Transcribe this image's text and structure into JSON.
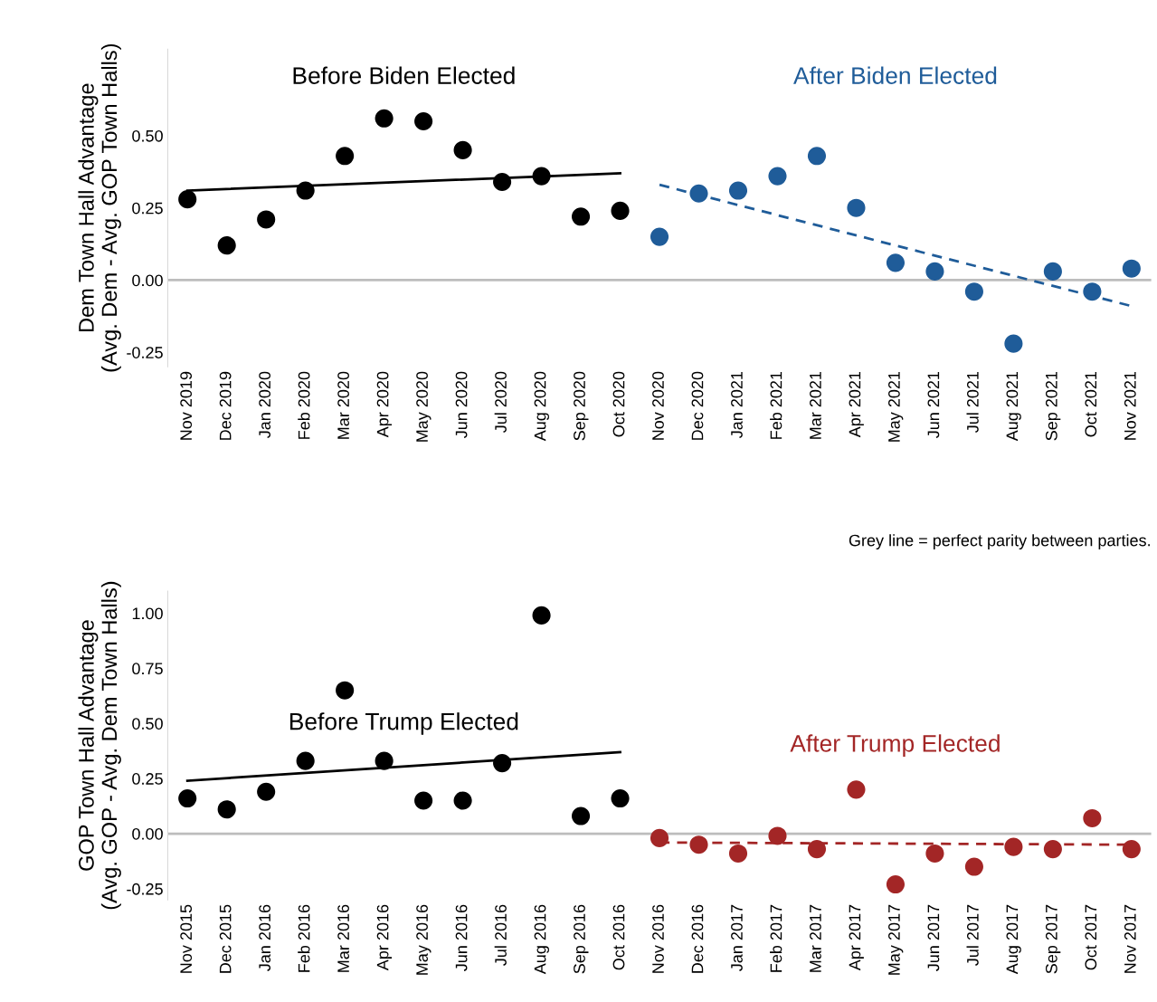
{
  "chart_data": [
    {
      "type": "scatter",
      "ylabel": "Dem Town Hall Advantage\n(Avg. Dem - Avg. GOP Town Halls)",
      "categories": [
        "Nov 2019",
        "Dec 2019",
        "Jan 2020",
        "Feb 2020",
        "Mar 2020",
        "Apr 2020",
        "May 2020",
        "Jun 2020",
        "Jul 2020",
        "Aug 2020",
        "Sep 2020",
        "Oct 2020",
        "Nov 2020",
        "Dec 2020",
        "Jan 2021",
        "Feb 2021",
        "Mar 2021",
        "Apr 2021",
        "May 2021",
        "Jun 2021",
        "Jul 2021",
        "Aug 2021",
        "Sep 2021",
        "Oct 2021",
        "Nov 2021"
      ],
      "series": [
        {
          "name": "Before Biden Elected",
          "color": "#000000",
          "marker": "circle",
          "values": [
            0.28,
            0.12,
            0.21,
            0.31,
            0.43,
            0.56,
            0.55,
            0.45,
            0.34,
            0.36,
            0.22,
            0.24,
            null,
            null,
            null,
            null,
            null,
            null,
            null,
            null,
            null,
            null,
            null,
            null,
            null
          ]
        },
        {
          "color": "#000000",
          "type": "line",
          "line_style": "solid",
          "values": [
            0.31,
            null,
            null,
            null,
            null,
            null,
            null,
            null,
            null,
            null,
            null,
            0.37,
            null,
            null,
            null,
            null,
            null,
            null,
            null,
            null,
            null,
            null,
            null,
            null,
            null
          ]
        },
        {
          "name": "After Biden Elected",
          "color": "#1f5c99",
          "marker": "circle",
          "values": [
            null,
            null,
            null,
            null,
            null,
            null,
            null,
            null,
            null,
            null,
            null,
            null,
            0.15,
            0.3,
            0.31,
            0.36,
            0.43,
            0.25,
            0.06,
            0.03,
            -0.04,
            -0.22,
            0.03,
            -0.04,
            0.04
          ]
        },
        {
          "color": "#1f5c99",
          "type": "line",
          "line_style": "dashed",
          "values": [
            null,
            null,
            null,
            null,
            null,
            null,
            null,
            null,
            null,
            null,
            null,
            null,
            0.33,
            null,
            null,
            null,
            null,
            null,
            null,
            null,
            null,
            null,
            null,
            null,
            -0.09
          ]
        }
      ],
      "ylim": [
        -0.3,
        0.8
      ],
      "yticks": [
        {
          "value": -0.25,
          "label": "-0.25"
        },
        {
          "value": 0,
          "label": "0.00"
        },
        {
          "value": 0.25,
          "label": "0.25"
        },
        {
          "value": 0.5,
          "label": "0.50"
        }
      ],
      "ref_lines": [
        {
          "axis": "y",
          "value": 0,
          "color": "#bdbdbd"
        }
      ],
      "grid": false,
      "legend": false
    },
    {
      "type": "scatter",
      "ylabel": "GOP Town Hall Advantage\n(Avg. GOP - Avg. Dem Town Halls)",
      "categories": [
        "Nov 2015",
        "Dec 2015",
        "Jan 2016",
        "Feb 2016",
        "Mar 2016",
        "Apr 2016",
        "May 2016",
        "Jun 2016",
        "Jul 2016",
        "Aug 2016",
        "Sep 2016",
        "Oct 2016",
        "Nov 2016",
        "Dec 2016",
        "Jan 2017",
        "Feb 2017",
        "Mar 2017",
        "Apr 2017",
        "May 2017",
        "Jun 2017",
        "Jul 2017",
        "Aug 2017",
        "Sep 2017",
        "Oct 2017",
        "Nov 2017"
      ],
      "series": [
        {
          "name": "Before Trump Elected",
          "color": "#000000",
          "marker": "circle",
          "values": [
            0.16,
            0.11,
            0.19,
            0.33,
            0.65,
            0.33,
            0.15,
            0.15,
            0.32,
            0.99,
            0.08,
            0.16,
            null,
            null,
            null,
            null,
            null,
            null,
            null,
            null,
            null,
            null,
            null,
            null,
            null
          ]
        },
        {
          "color": "#000000",
          "type": "line",
          "line_style": "solid",
          "values": [
            0.24,
            null,
            null,
            null,
            null,
            null,
            null,
            null,
            null,
            null,
            null,
            0.37,
            null,
            null,
            null,
            null,
            null,
            null,
            null,
            null,
            null,
            null,
            null,
            null,
            null
          ]
        },
        {
          "name": "After Trump Elected",
          "color": "#a32626",
          "marker": "circle",
          "values": [
            null,
            null,
            null,
            null,
            null,
            null,
            null,
            null,
            null,
            null,
            null,
            null,
            -0.02,
            -0.05,
            -0.09,
            -0.01,
            -0.07,
            0.2,
            -0.23,
            -0.09,
            -0.15,
            -0.06,
            -0.07,
            0.07,
            -0.07
          ]
        },
        {
          "color": "#a32626",
          "type": "line",
          "line_style": "dashed",
          "values": [
            null,
            null,
            null,
            null,
            null,
            null,
            null,
            null,
            null,
            null,
            null,
            null,
            -0.04,
            null,
            null,
            null,
            null,
            null,
            null,
            null,
            null,
            null,
            null,
            null,
            -0.05
          ]
        }
      ],
      "ylim": [
        -0.3,
        1.1
      ],
      "yticks": [
        {
          "value": -0.25,
          "label": "-0.25"
        },
        {
          "value": 0,
          "label": "0.00"
        },
        {
          "value": 0.25,
          "label": "0.25"
        },
        {
          "value": 0.5,
          "label": "0.50"
        },
        {
          "value": 0.75,
          "label": "0.75"
        },
        {
          "value": 1,
          "label": "1.00"
        }
      ],
      "ref_lines": [
        {
          "axis": "y",
          "value": 0,
          "color": "#bdbdbd"
        }
      ],
      "grid": false,
      "legend": false,
      "annotations": [
        "Grey line = perfect parity between parties."
      ]
    }
  ]
}
